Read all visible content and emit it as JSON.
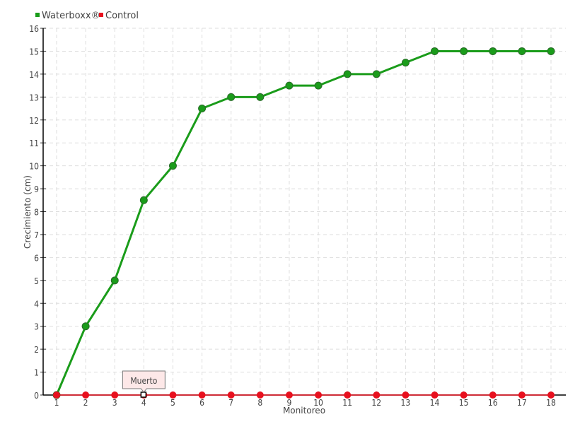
{
  "chart_data": {
    "type": "line",
    "xlabel": "Monitoreo",
    "ylabel": "Crecimiento (cm)",
    "x": [
      1,
      2,
      3,
      4,
      5,
      6,
      7,
      8,
      9,
      10,
      11,
      12,
      13,
      14,
      15,
      16,
      17,
      18
    ],
    "ylim": [
      0,
      16
    ],
    "grid": true,
    "legend_position": "top-left",
    "series": [
      {
        "name": "Waterboxx®",
        "color": "#1a9c1a",
        "values": [
          0,
          3,
          5,
          8.5,
          10,
          12.5,
          13,
          13,
          13.5,
          13.5,
          14,
          14,
          14.5,
          15,
          15,
          15,
          15,
          15
        ]
      },
      {
        "name": "Control",
        "color": "#e8101e",
        "values": [
          0,
          0,
          0,
          0,
          0,
          0,
          0,
          0,
          0,
          0,
          0,
          0,
          0,
          0,
          0,
          0,
          0,
          0
        ]
      }
    ],
    "annotations": [
      {
        "x": 4,
        "series": "Control",
        "text": "Muerto"
      }
    ]
  }
}
